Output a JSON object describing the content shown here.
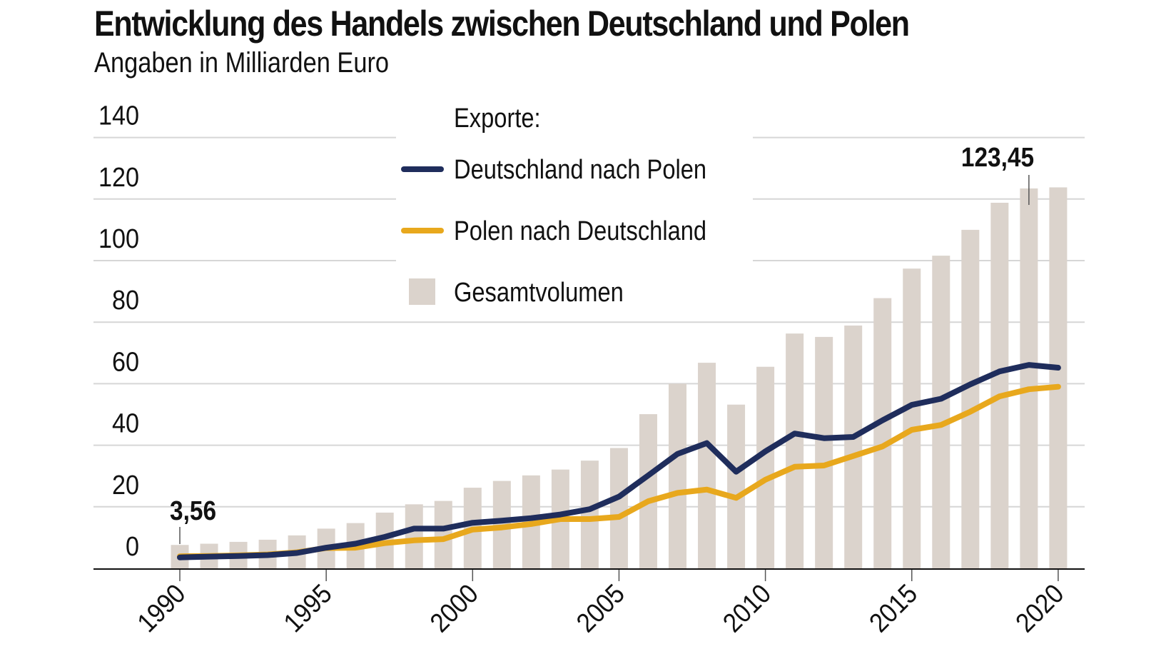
{
  "header": {
    "title": "Entwicklung des Handels zwischen Deutschland und Polen",
    "subtitle": "Angaben in Milliarden Euro"
  },
  "legend": {
    "heading": "Exporte:",
    "items": [
      {
        "key": "de_pl",
        "label": "Deutschland nach Polen",
        "kind": "line",
        "color": "#1f2d5c"
      },
      {
        "key": "pl_de",
        "label": "Polen nach Deutschland",
        "kind": "line",
        "color": "#e8a81d"
      },
      {
        "key": "total",
        "label": "Gesamtvolumen",
        "kind": "bar",
        "color": "#dbd3cc"
      }
    ]
  },
  "annotations": [
    {
      "year": 1990,
      "value": 7.5,
      "text": "3,56"
    },
    {
      "year": 2019,
      "value": 123.45,
      "text": "123,45"
    }
  ],
  "chart_data": {
    "type": "bar+line",
    "title": "Entwicklung des Handels zwischen Deutschland und Polen",
    "subtitle": "Angaben in Milliarden Euro",
    "xlabel": "",
    "ylabel": "",
    "ylim": [
      0,
      140
    ],
    "yticks": [
      0,
      20,
      40,
      60,
      80,
      100,
      120,
      140
    ],
    "xticks": [
      1990,
      1995,
      2000,
      2005,
      2010,
      2015,
      2020
    ],
    "grid": true,
    "legend_position": "top-center",
    "x": [
      1990,
      1991,
      1992,
      1993,
      1994,
      1995,
      1996,
      1997,
      1998,
      1999,
      2000,
      2001,
      2002,
      2003,
      2004,
      2005,
      2006,
      2007,
      2008,
      2009,
      2010,
      2011,
      2012,
      2013,
      2014,
      2015,
      2016,
      2017,
      2018,
      2019,
      2020
    ],
    "series": [
      {
        "name": "Gesamtvolumen",
        "type": "bar",
        "color": "#dbd3cc",
        "values": [
          7.6,
          8.0,
          8.6,
          9.3,
          10.7,
          12.9,
          14.7,
          18.1,
          20.8,
          21.9,
          26.2,
          28.4,
          30.2,
          32.1,
          35.0,
          39.1,
          50.1,
          60.0,
          66.8,
          53.2,
          65.5,
          76.3,
          75.2,
          78.9,
          87.8,
          97.4,
          101.6,
          110.0,
          118.8,
          123.45,
          123.8
        ]
      },
      {
        "name": "Deutschland nach Polen",
        "type": "line",
        "color": "#1f2d5c",
        "values": [
          3.56,
          3.8,
          4.0,
          4.3,
          5.0,
          6.7,
          8.0,
          10.2,
          12.9,
          12.9,
          14.8,
          15.5,
          16.3,
          17.5,
          19.2,
          23.3,
          30.2,
          37.2,
          40.7,
          31.4,
          38.0,
          43.8,
          42.3,
          42.7,
          48.1,
          53.1,
          55.1,
          59.8,
          64.0,
          66.1,
          65.2
        ]
      },
      {
        "name": "Polen nach Deutschland",
        "type": "line",
        "color": "#e8a81d",
        "values": [
          3.9,
          4.0,
          4.2,
          4.5,
          5.2,
          6.6,
          6.7,
          8.2,
          9.1,
          9.5,
          12.6,
          13.3,
          14.4,
          16.0,
          16.0,
          16.7,
          21.8,
          24.5,
          25.6,
          22.9,
          28.8,
          33.0,
          33.4,
          36.5,
          39.6,
          45.0,
          46.6,
          50.9,
          55.9,
          58.2,
          59.0
        ]
      }
    ],
    "annotations": [
      {
        "x": 1990,
        "text": "3,56"
      },
      {
        "x": 2019,
        "text": "123,45"
      }
    ]
  }
}
